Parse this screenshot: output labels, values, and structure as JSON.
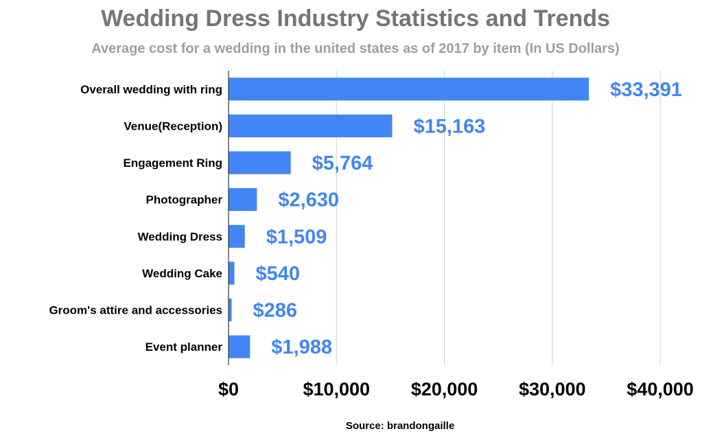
{
  "chart_data": {
    "type": "bar",
    "orientation": "horizontal",
    "title": "Wedding Dress Industry Statistics and Trends",
    "subtitle": "Average cost for a wedding in the united states as of 2017 by item (In US Dollars)",
    "categories": [
      "Overall wedding with ring",
      "Venue(Reception)",
      "Engagement Ring",
      "Photographer",
      "Wedding Dress",
      "Wedding Cake",
      "Groom's attire and accessories",
      "Event planner"
    ],
    "values": [
      33391,
      15163,
      5764,
      2630,
      1509,
      540,
      286,
      1988
    ],
    "value_labels": [
      "$33,391",
      "$15,163",
      "$5,764",
      "$2,630",
      "$1,509",
      "$540",
      "$286",
      "$1,988"
    ],
    "x_ticks": [
      0,
      10000,
      20000,
      30000,
      40000
    ],
    "x_tick_labels": [
      "$0",
      "$10,000",
      "$20,000",
      "$30,000",
      "$40,000"
    ],
    "xlim": [
      0,
      40000
    ],
    "grid": "vertical",
    "legend": "none",
    "bar_color": "#4285f4",
    "label_color": "#4285f4",
    "source": "Source: brandongaille"
  }
}
